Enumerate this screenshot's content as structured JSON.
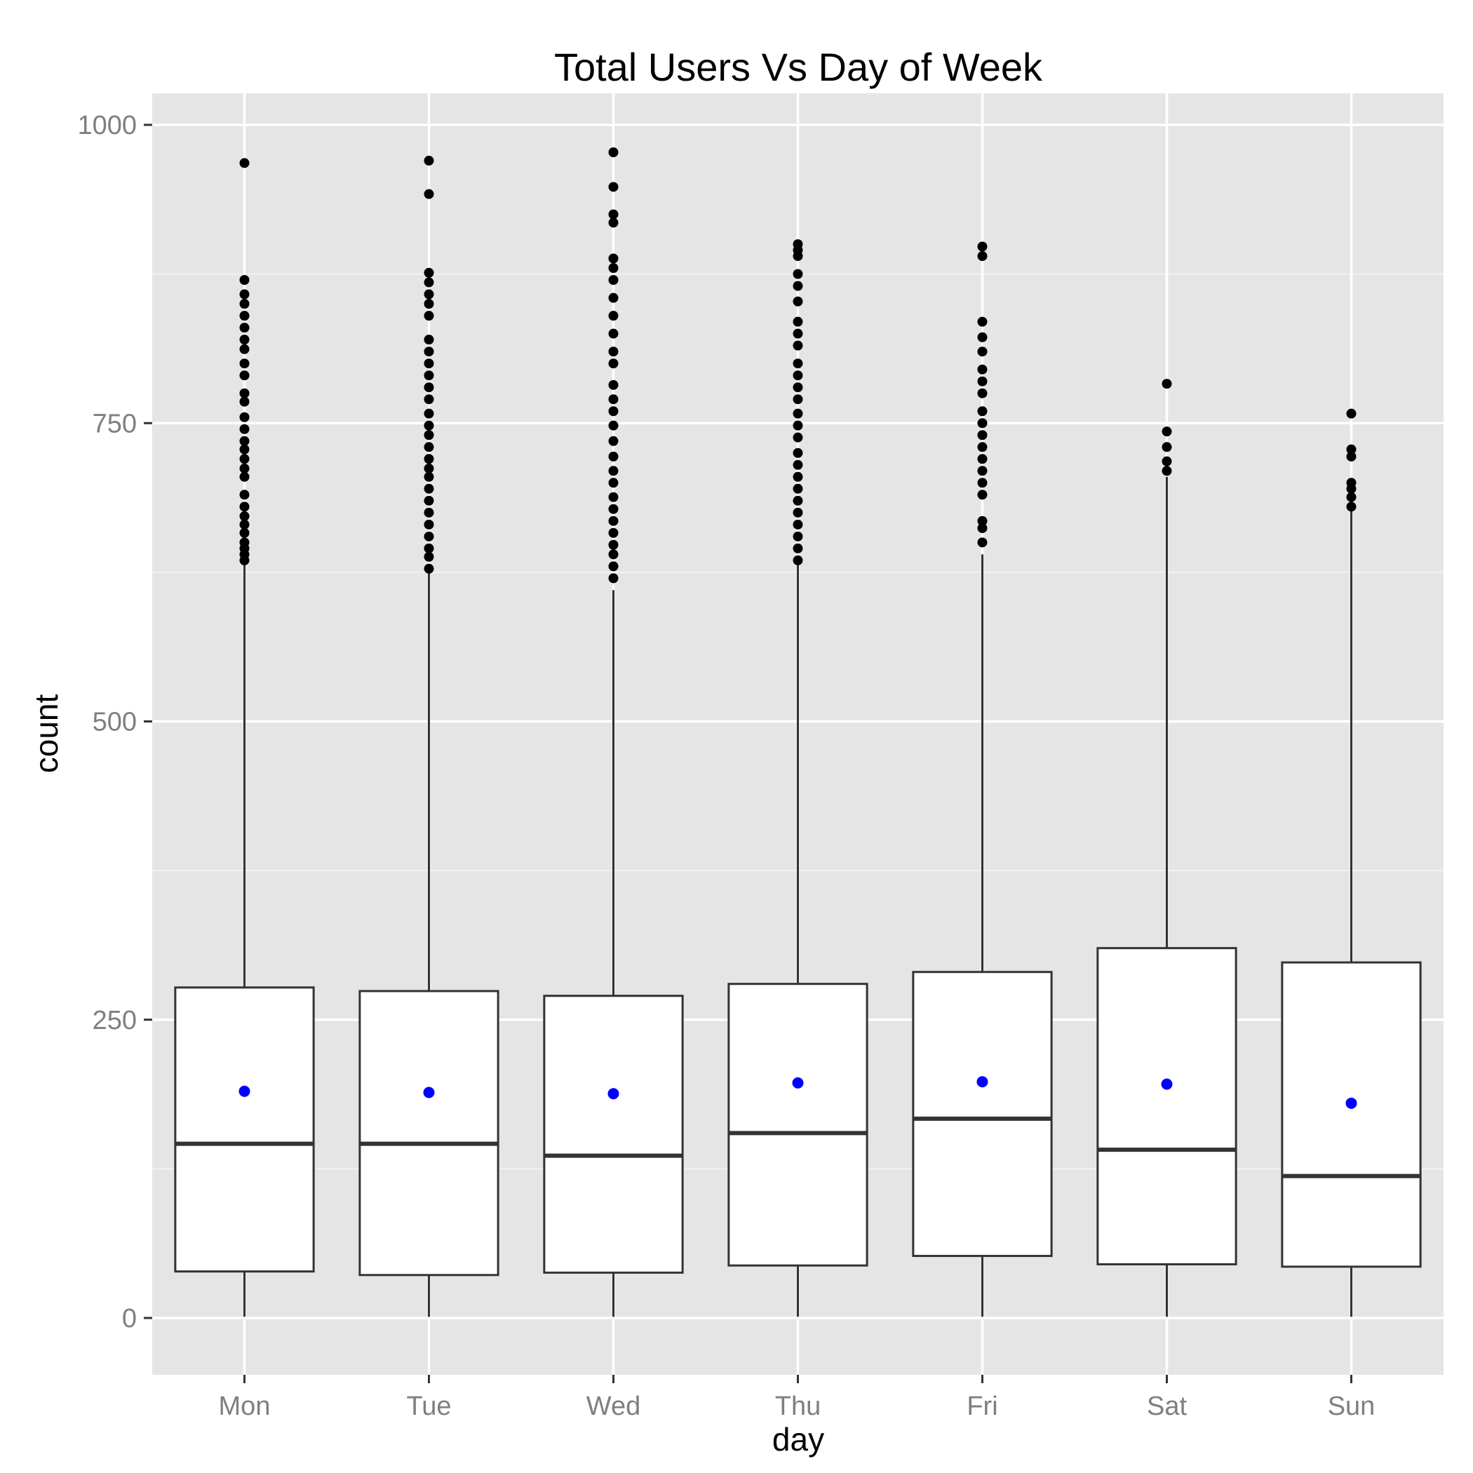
{
  "chart_data": {
    "type": "box",
    "title": "Total Users Vs Day of Week",
    "xlabel": "day",
    "ylabel": "count",
    "ylim": [
      -45,
      1025
    ],
    "yticks": [
      0,
      250,
      500,
      750,
      1000
    ],
    "grid": true,
    "categories": [
      "Mon",
      "Tue",
      "Wed",
      "Thu",
      "Fri",
      "Sat",
      "Sun"
    ],
    "colors": {
      "panel": "#e5e5e5",
      "grid_major": "#ffffff",
      "grid_minor": "#f2f2f2",
      "box_fill": "#ffffff",
      "box_stroke": "#333333",
      "outlier": "#000000",
      "mean": "#0000ff"
    },
    "boxes": [
      {
        "day": "Mon",
        "min": 1,
        "q1": 39,
        "median": 146,
        "q3": 277,
        "max": 635,
        "mean": 190,
        "outliers": [
          635,
          640,
          645,
          650,
          658,
          665,
          672,
          680,
          690,
          705,
          712,
          720,
          728,
          735,
          745,
          755,
          768,
          775,
          790,
          800,
          812,
          820,
          830,
          840,
          850,
          858,
          870,
          968
        ]
      },
      {
        "day": "Tue",
        "min": 1,
        "q1": 36,
        "median": 146,
        "q3": 274,
        "max": 628,
        "mean": 189,
        "outliers": [
          628,
          638,
          645,
          655,
          665,
          675,
          685,
          695,
          705,
          712,
          720,
          730,
          740,
          748,
          758,
          770,
          780,
          790,
          800,
          810,
          820,
          840,
          850,
          858,
          868,
          876,
          942,
          970
        ]
      },
      {
        "day": "Wed",
        "min": 1,
        "q1": 38,
        "median": 136,
        "q3": 270,
        "max": 610,
        "mean": 188,
        "outliers": [
          620,
          630,
          640,
          648,
          658,
          668,
          678,
          688,
          700,
          710,
          722,
          735,
          748,
          760,
          770,
          782,
          800,
          810,
          825,
          840,
          855,
          870,
          880,
          888,
          918,
          925,
          948,
          977
        ]
      },
      {
        "day": "Thu",
        "min": 1,
        "q1": 44,
        "median": 155,
        "q3": 280,
        "max": 635,
        "mean": 197,
        "outliers": [
          635,
          645,
          655,
          665,
          675,
          685,
          695,
          705,
          715,
          725,
          738,
          748,
          758,
          770,
          780,
          790,
          800,
          815,
          825,
          835,
          852,
          865,
          875,
          890,
          895,
          900
        ]
      },
      {
        "day": "Fri",
        "min": 1,
        "q1": 52,
        "median": 167,
        "q3": 290,
        "max": 640,
        "mean": 198,
        "outliers": [
          650,
          662,
          668,
          690,
          700,
          710,
          720,
          730,
          740,
          750,
          760,
          775,
          785,
          795,
          810,
          822,
          835,
          890,
          898
        ]
      },
      {
        "day": "Sat",
        "min": 1,
        "q1": 45,
        "median": 141,
        "q3": 310,
        "max": 705,
        "mean": 196,
        "outliers": [
          710,
          718,
          730,
          743,
          783
        ]
      },
      {
        "day": "Sun",
        "min": 1,
        "q1": 43,
        "median": 119,
        "q3": 298,
        "max": 678,
        "mean": 180,
        "outliers": [
          680,
          688,
          695,
          700,
          722,
          728,
          758
        ]
      }
    ]
  }
}
